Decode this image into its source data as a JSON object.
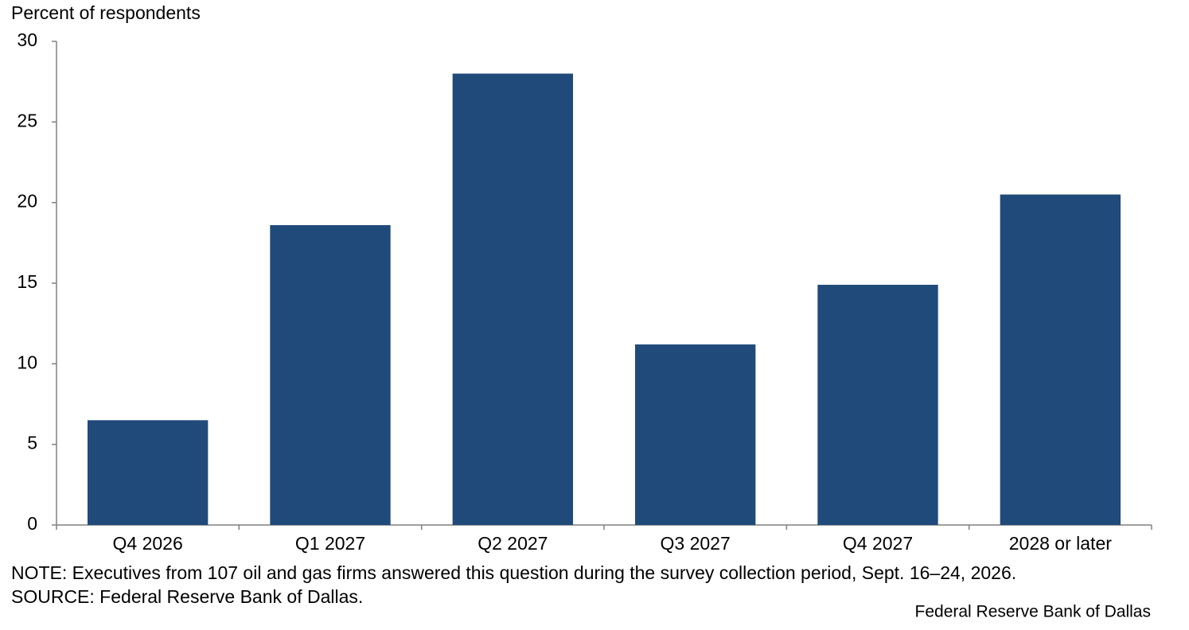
{
  "chart_data": {
    "type": "bar",
    "y_label": "Percent of respondents",
    "categories": [
      "Q4 2026",
      "Q1 2027",
      "Q2 2027",
      "Q3 2027",
      "Q4 2027",
      "2028 or later"
    ],
    "values": [
      6.5,
      18.6,
      28.0,
      11.2,
      14.9,
      20.5
    ],
    "color": "#204a7a",
    "ylim": [
      0,
      30
    ],
    "yticks": [
      0,
      5,
      10,
      15,
      20,
      25,
      30
    ],
    "grid": false,
    "note": "NOTE: Executives from 107 oil and gas firms answered this question during the survey collection period, Sept. 16–24, 2026.",
    "source": "SOURCE: Federal Reserve Bank of Dallas.",
    "credit": "Federal Reserve Bank of Dallas"
  }
}
